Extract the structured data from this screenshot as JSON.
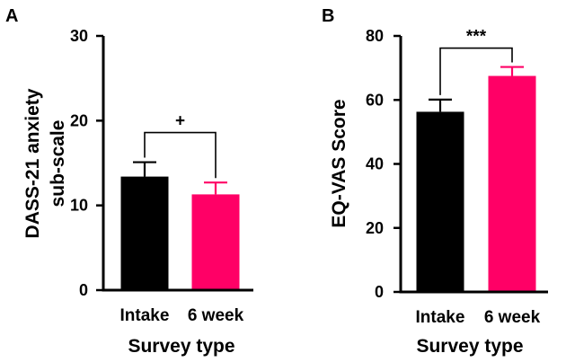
{
  "chart_data": [
    {
      "panel": "A",
      "type": "bar",
      "categories": [
        "Intake",
        "6 week"
      ],
      "values": [
        13.4,
        11.3
      ],
      "errors": [
        1.7,
        1.4
      ],
      "colors": [
        "#000000",
        "#ff0066"
      ],
      "ylabel": [
        "DASS-21 anxiety",
        "sub-scale"
      ],
      "xlabel": "Survey type",
      "ylim": [
        0,
        30
      ],
      "yticks": [
        0,
        10,
        20,
        30
      ],
      "significance": {
        "label": "+",
        "level": 18.6
      },
      "grid": false
    },
    {
      "panel": "B",
      "type": "bar",
      "categories": [
        "Intake",
        "6 week"
      ],
      "values": [
        56.3,
        67.5
      ],
      "errors": [
        3.8,
        2.8
      ],
      "colors": [
        "#000000",
        "#ff0066"
      ],
      "ylabel": [
        "EQ-VAS Score"
      ],
      "xlabel": "Survey type",
      "ylim": [
        0,
        80
      ],
      "yticks": [
        0,
        20,
        40,
        60,
        80
      ],
      "significance": {
        "label": "***",
        "level": 76.2
      },
      "grid": false
    }
  ]
}
